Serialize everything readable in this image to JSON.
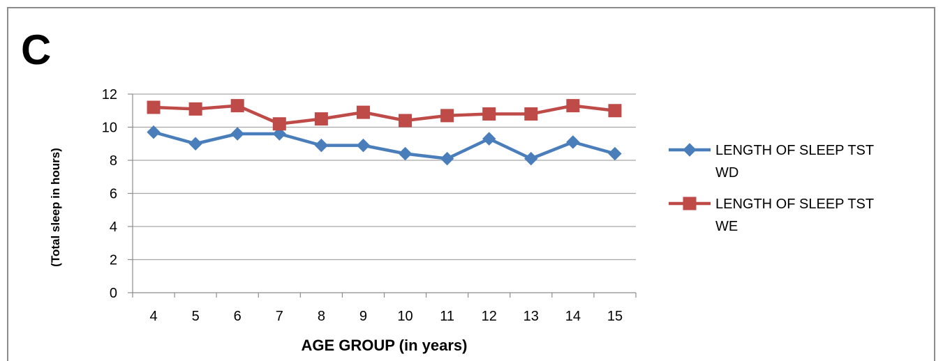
{
  "panel_label": "C",
  "chart_data": {
    "type": "line",
    "title": "",
    "xlabel": "AGE GROUP (in years)",
    "ylabel": "(Total sleep in hours)",
    "categories": [
      "4",
      "5",
      "6",
      "7",
      "8",
      "9",
      "10",
      "11",
      "12",
      "13",
      "14",
      "15"
    ],
    "ylim": [
      0,
      12
    ],
    "yticks": [
      "0",
      "2",
      "4",
      "6",
      "8",
      "10",
      "12"
    ],
    "grid": true,
    "legend_position": "right",
    "series": [
      {
        "name_lines": [
          "LENGTH OF SLEEP TST",
          "WD"
        ],
        "color": "#4a7ebb",
        "marker": "diamond",
        "values": [
          9.7,
          9.0,
          9.6,
          9.6,
          8.9,
          8.9,
          8.4,
          8.1,
          9.3,
          8.1,
          9.1,
          8.4
        ]
      },
      {
        "name_lines": [
          "LENGTH OF SLEEP TST",
          "WE"
        ],
        "color": "#be4b48",
        "marker": "square",
        "values": [
          11.2,
          11.1,
          11.3,
          10.2,
          10.5,
          10.9,
          10.4,
          10.7,
          10.8,
          10.8,
          11.3,
          11.0
        ]
      }
    ]
  }
}
